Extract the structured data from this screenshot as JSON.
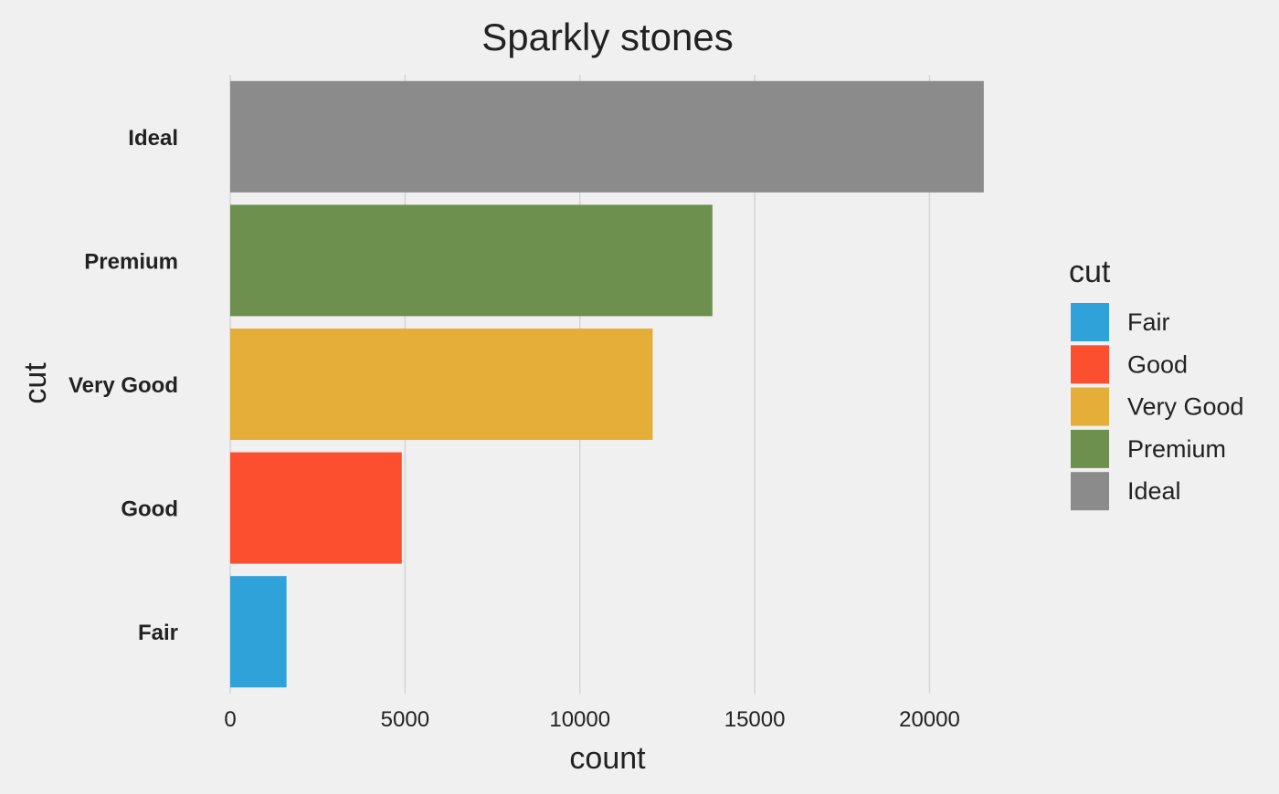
{
  "chart_data": {
    "type": "bar",
    "orientation": "horizontal",
    "title": "Sparkly stones",
    "xlabel": "count",
    "ylabel": "cut",
    "categories": [
      "Fair",
      "Good",
      "Very Good",
      "Premium",
      "Ideal"
    ],
    "values": [
      1610,
      4906,
      12082,
      13791,
      21551
    ],
    "colors": [
      "#30a2da",
      "#fc4f30",
      "#e5ae38",
      "#6d904f",
      "#8b8b8b"
    ],
    "xlim": [
      0,
      22600
    ],
    "xticks": [
      0,
      5000,
      10000,
      15000,
      20000
    ],
    "grid": "vertical",
    "legend": {
      "title": "cut",
      "position": "right",
      "items": [
        "Fair",
        "Good",
        "Very Good",
        "Premium",
        "Ideal"
      ]
    }
  }
}
